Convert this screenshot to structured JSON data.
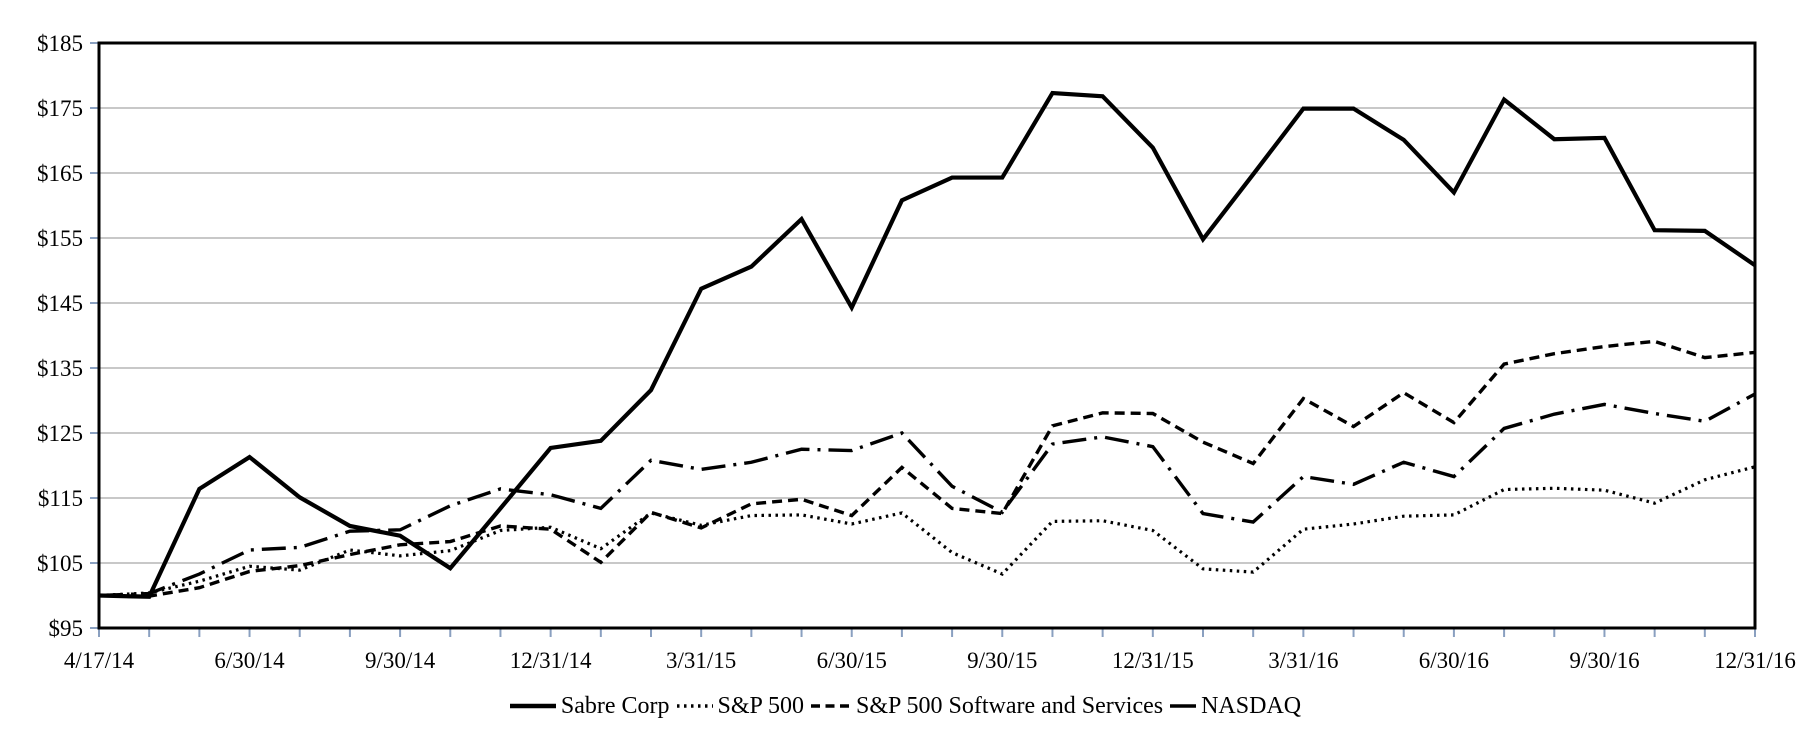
{
  "chart_data": {
    "type": "line",
    "title": "",
    "x_categories_count": 34,
    "x_tick_labels": [
      {
        "index": 0,
        "label": "4/17/14"
      },
      {
        "index": 3,
        "label": "6/30/14"
      },
      {
        "index": 6,
        "label": "9/30/14"
      },
      {
        "index": 9,
        "label": "12/31/14"
      },
      {
        "index": 12,
        "label": "3/31/15"
      },
      {
        "index": 15,
        "label": "6/30/15"
      },
      {
        "index": 18,
        "label": "9/30/15"
      },
      {
        "index": 21,
        "label": "12/31/15"
      },
      {
        "index": 24,
        "label": "3/31/16"
      },
      {
        "index": 27,
        "label": "6/30/16"
      },
      {
        "index": 30,
        "label": "9/30/16"
      },
      {
        "index": 33,
        "label": "12/31/16"
      }
    ],
    "y_axis": {
      "min": 95,
      "max": 185,
      "step": 10,
      "tick_labels": [
        "$95",
        "$105",
        "$115",
        "$125",
        "$135",
        "$145",
        "$155",
        "$165",
        "$175",
        "$185"
      ]
    },
    "grid": "horizontal",
    "legend_position": "bottom-center",
    "colors": {
      "line": "#000000",
      "gridline": "#a8a8a8",
      "tick": "#8aa0c0",
      "border": "#000000",
      "background": "#ffffff"
    },
    "series": [
      {
        "name": "Sabre Corp",
        "style": "solid",
        "values": [
          100,
          99.8,
          116.4,
          121.3,
          115.1,
          110.7,
          109.2,
          104.2,
          113.4,
          122.7,
          123.8,
          131.6,
          147.2,
          150.6,
          157.9,
          144.3,
          160.8,
          164.3,
          164.3,
          177.3,
          176.8,
          168.9,
          154.8,
          164.8,
          174.9,
          174.9,
          170.1,
          162.0,
          176.3,
          170.2,
          170.4,
          156.2,
          156.1,
          150.8
        ]
      },
      {
        "name": "S&P 500",
        "style": "dotted",
        "values": [
          100,
          100.4,
          102.2,
          104.5,
          103.9,
          107.0,
          106.1,
          106.9,
          110.0,
          110.5,
          107.2,
          112.7,
          110.8,
          112.3,
          112.4,
          111.0,
          112.7,
          106.6,
          103.3,
          111.4,
          111.5,
          110.0,
          104.1,
          103.6,
          110.2,
          111.0,
          112.2,
          112.4,
          116.3,
          116.5,
          116.2,
          114.2,
          117.8,
          119.8
        ]
      },
      {
        "name": "S&P 500 Software and Services",
        "style": "dashed",
        "values": [
          100,
          99.9,
          101.2,
          103.7,
          104.6,
          106.3,
          107.8,
          108.3,
          110.7,
          110.2,
          105.1,
          112.8,
          110.4,
          114.1,
          114.8,
          112.3,
          119.7,
          113.4,
          112.6,
          126.1,
          128.1,
          128.0,
          123.6,
          120.3,
          130.3,
          126.0,
          131.2,
          126.6,
          135.6,
          137.2,
          138.3,
          139.1,
          136.6,
          137.4
        ]
      },
      {
        "name": "NASDAQ",
        "style": "dashdot",
        "values": [
          100,
          100.3,
          103.3,
          107.0,
          107.4,
          109.9,
          110.1,
          113.8,
          116.4,
          115.5,
          113.4,
          120.8,
          119.4,
          120.5,
          122.5,
          122.3,
          125.0,
          116.8,
          112.8,
          123.3,
          124.4,
          122.9,
          112.6,
          111.3,
          118.3,
          117.1,
          120.5,
          118.3,
          125.7,
          127.9,
          129.4,
          128.0,
          126.8,
          131.0
        ]
      }
    ]
  }
}
